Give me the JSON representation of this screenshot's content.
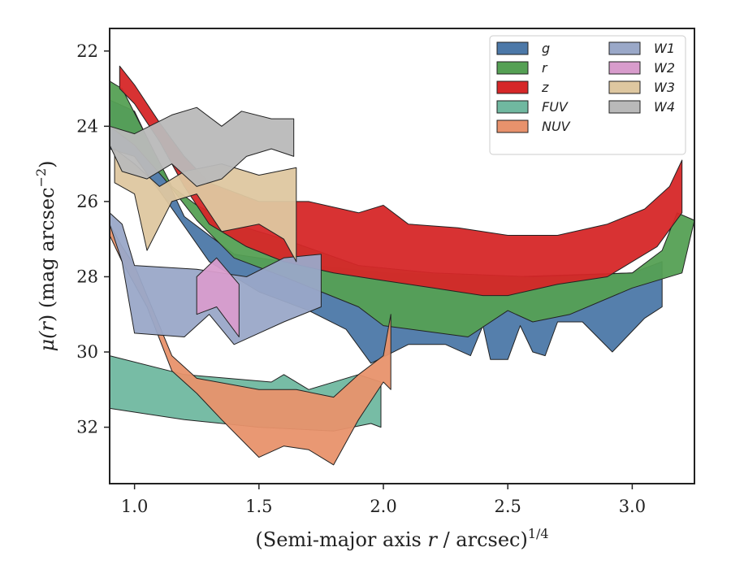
{
  "chart_data": {
    "type": "area",
    "xlabel_main": "(Semi-major axis ",
    "xlabel_var": "r",
    "xlabel_unit": " / arcsec)",
    "xlabel_exp": "1/4",
    "ylabel_mu": "μ(",
    "ylabel_var": "r",
    "ylabel_rest": ") (mag arcsec",
    "ylabel_exp": "−2",
    "ylabel_close": ")",
    "xlim": [
      0.9,
      3.25
    ],
    "ylim": [
      33.5,
      21.4
    ],
    "x_ticks": [
      1.0,
      1.5,
      2.0,
      2.5,
      3.0
    ],
    "x_tick_labels": [
      "1.0",
      "1.5",
      "2.0",
      "2.5",
      "3.0"
    ],
    "y_ticks": [
      22,
      24,
      26,
      28,
      30,
      32
    ],
    "y_tick_labels": [
      "22",
      "24",
      "26",
      "28",
      "30",
      "32"
    ],
    "legend_placement": "top-right",
    "legend_columns": 2,
    "series": [
      {
        "name": "g",
        "color": "#4c78a8",
        "upper": [
          [
            0.9,
            23.3
          ],
          [
            1.0,
            23.6
          ],
          [
            1.1,
            25.0
          ],
          [
            1.2,
            26.4
          ],
          [
            1.4,
            27.4
          ],
          [
            1.6,
            27.6
          ],
          [
            2.0,
            27.9
          ],
          [
            2.5,
            28.0
          ],
          [
            3.0,
            27.9
          ],
          [
            3.12,
            27.6
          ]
        ],
        "lower": [
          [
            0.9,
            24.6
          ],
          [
            1.0,
            24.8
          ],
          [
            1.12,
            25.9
          ],
          [
            1.3,
            27.6
          ],
          [
            1.5,
            28.4
          ],
          [
            1.7,
            28.9
          ],
          [
            1.85,
            29.4
          ],
          [
            1.95,
            30.3
          ],
          [
            2.1,
            29.8
          ],
          [
            2.25,
            29.8
          ],
          [
            2.35,
            30.1
          ],
          [
            2.4,
            29.3
          ],
          [
            2.43,
            30.2
          ],
          [
            2.5,
            30.2
          ],
          [
            2.55,
            29.3
          ],
          [
            2.6,
            30.0
          ],
          [
            2.65,
            30.1
          ],
          [
            2.7,
            29.2
          ],
          [
            2.8,
            29.2
          ],
          [
            2.92,
            30.0
          ],
          [
            3.05,
            29.1
          ],
          [
            3.12,
            28.8
          ]
        ]
      },
      {
        "name": "r",
        "color": "#55a054",
        "upper": [
          [
            0.9,
            22.8
          ],
          [
            0.95,
            23.0
          ],
          [
            1.05,
            24.3
          ],
          [
            1.15,
            25.6
          ],
          [
            1.25,
            26.1
          ],
          [
            1.4,
            26.6
          ],
          [
            1.6,
            27.0
          ],
          [
            1.9,
            27.7
          ],
          [
            2.2,
            27.9
          ],
          [
            2.6,
            28.0
          ],
          [
            3.0,
            27.9
          ],
          [
            3.12,
            27.3
          ],
          [
            3.18,
            26.3
          ],
          [
            3.25,
            26.5
          ]
        ],
        "lower": [
          [
            0.9,
            24.0
          ],
          [
            1.0,
            24.5
          ],
          [
            1.12,
            25.4
          ],
          [
            1.25,
            26.5
          ],
          [
            1.4,
            27.5
          ],
          [
            1.6,
            28.0
          ],
          [
            1.9,
            28.8
          ],
          [
            2.0,
            29.3
          ],
          [
            2.34,
            29.6
          ],
          [
            2.5,
            28.9
          ],
          [
            2.6,
            29.2
          ],
          [
            2.75,
            29.0
          ],
          [
            3.0,
            28.3
          ],
          [
            3.2,
            27.9
          ]
        ]
      },
      {
        "name": "z",
        "color": "#d62728",
        "upper": [
          [
            0.94,
            22.4
          ],
          [
            1.0,
            22.9
          ],
          [
            1.1,
            23.9
          ],
          [
            1.2,
            24.8
          ],
          [
            1.3,
            25.5
          ],
          [
            1.5,
            26.0
          ],
          [
            1.7,
            26.0
          ],
          [
            1.9,
            26.3
          ],
          [
            2.0,
            26.1
          ],
          [
            2.1,
            26.6
          ],
          [
            2.3,
            26.7
          ],
          [
            2.5,
            26.9
          ],
          [
            2.7,
            26.9
          ],
          [
            2.9,
            26.6
          ],
          [
            3.05,
            26.2
          ],
          [
            3.15,
            25.6
          ],
          [
            3.2,
            24.9
          ]
        ],
        "lower": [
          [
            0.94,
            23.0
          ],
          [
            1.0,
            23.4
          ],
          [
            1.1,
            24.4
          ],
          [
            1.2,
            25.6
          ],
          [
            1.3,
            26.6
          ],
          [
            1.45,
            27.2
          ],
          [
            1.6,
            27.6
          ],
          [
            1.8,
            27.9
          ],
          [
            2.0,
            28.1
          ],
          [
            2.2,
            28.3
          ],
          [
            2.4,
            28.5
          ],
          [
            2.5,
            28.5
          ],
          [
            2.7,
            28.2
          ],
          [
            2.9,
            28.0
          ],
          [
            3.0,
            27.6
          ],
          [
            3.1,
            27.2
          ],
          [
            3.2,
            26.3
          ]
        ]
      },
      {
        "name": "FUV",
        "color": "#70b8a0",
        "upper": [
          [
            0.9,
            30.1
          ],
          [
            1.2,
            30.6
          ],
          [
            1.55,
            30.8
          ],
          [
            1.6,
            30.6
          ],
          [
            1.7,
            31.0
          ],
          [
            1.9,
            30.6
          ],
          [
            1.99,
            30.8
          ]
        ],
        "lower": [
          [
            0.9,
            31.5
          ],
          [
            1.2,
            31.8
          ],
          [
            1.5,
            32.0
          ],
          [
            1.8,
            32.1
          ],
          [
            1.95,
            31.9
          ],
          [
            1.99,
            32.0
          ]
        ]
      },
      {
        "name": "NUV",
        "color": "#e8926c",
        "upper": [
          [
            0.9,
            26.6
          ],
          [
            0.95,
            27.2
          ],
          [
            1.0,
            27.7
          ],
          [
            1.1,
            29.3
          ],
          [
            1.15,
            30.1
          ],
          [
            1.25,
            30.7
          ],
          [
            1.5,
            31.0
          ],
          [
            1.65,
            31.0
          ],
          [
            1.8,
            31.2
          ],
          [
            1.9,
            30.6
          ],
          [
            2.0,
            30.1
          ],
          [
            2.03,
            29.0
          ]
        ],
        "lower": [
          [
            0.9,
            26.9
          ],
          [
            0.95,
            27.6
          ],
          [
            1.05,
            28.8
          ],
          [
            1.15,
            30.5
          ],
          [
            1.25,
            31.1
          ],
          [
            1.35,
            31.8
          ],
          [
            1.5,
            32.8
          ],
          [
            1.6,
            32.5
          ],
          [
            1.7,
            32.6
          ],
          [
            1.8,
            33.0
          ],
          [
            1.9,
            31.8
          ],
          [
            2.0,
            30.8
          ],
          [
            2.03,
            31.0
          ]
        ]
      },
      {
        "name": "W1",
        "color": "#9aa8c8",
        "upper": [
          [
            0.9,
            26.3
          ],
          [
            0.95,
            26.6
          ],
          [
            1.0,
            27.7
          ],
          [
            1.25,
            27.8
          ],
          [
            1.45,
            28.0
          ],
          [
            1.6,
            27.5
          ],
          [
            1.75,
            27.4
          ]
        ],
        "lower": [
          [
            0.9,
            26.6
          ],
          [
            0.95,
            27.6
          ],
          [
            1.0,
            29.5
          ],
          [
            1.2,
            29.6
          ],
          [
            1.3,
            29.0
          ],
          [
            1.4,
            29.8
          ],
          [
            1.5,
            29.5
          ],
          [
            1.6,
            29.2
          ],
          [
            1.75,
            28.8
          ]
        ]
      },
      {
        "name": "W2",
        "color": "#d89ccc",
        "upper": [
          [
            1.25,
            28.0
          ],
          [
            1.33,
            27.5
          ],
          [
            1.42,
            28.2
          ]
        ],
        "lower": [
          [
            1.25,
            29.0
          ],
          [
            1.33,
            28.8
          ],
          [
            1.42,
            29.6
          ]
        ]
      },
      {
        "name": "W3",
        "color": "#dec7a0",
        "upper": [
          [
            0.92,
            24.6
          ],
          [
            1.0,
            25.0
          ],
          [
            1.1,
            25.6
          ],
          [
            1.2,
            25.2
          ],
          [
            1.35,
            25.0
          ],
          [
            1.5,
            25.3
          ],
          [
            1.65,
            25.1
          ]
        ],
        "lower": [
          [
            0.92,
            25.5
          ],
          [
            1.0,
            25.8
          ],
          [
            1.05,
            27.3
          ],
          [
            1.15,
            26.0
          ],
          [
            1.25,
            25.8
          ],
          [
            1.35,
            26.8
          ],
          [
            1.5,
            26.6
          ],
          [
            1.6,
            27.0
          ],
          [
            1.65,
            27.6
          ]
        ]
      },
      {
        "name": "W4",
        "color": "#b9b9b9",
        "upper": [
          [
            0.9,
            24.0
          ],
          [
            1.0,
            24.2
          ],
          [
            1.15,
            23.7
          ],
          [
            1.25,
            23.5
          ],
          [
            1.35,
            24.0
          ],
          [
            1.43,
            23.6
          ],
          [
            1.55,
            23.8
          ],
          [
            1.64,
            23.8
          ]
        ],
        "lower": [
          [
            0.9,
            24.5
          ],
          [
            0.95,
            25.2
          ],
          [
            1.05,
            25.4
          ],
          [
            1.15,
            25.0
          ],
          [
            1.25,
            25.6
          ],
          [
            1.35,
            25.4
          ],
          [
            1.45,
            24.8
          ],
          [
            1.55,
            24.6
          ],
          [
            1.64,
            24.8
          ]
        ]
      }
    ]
  }
}
